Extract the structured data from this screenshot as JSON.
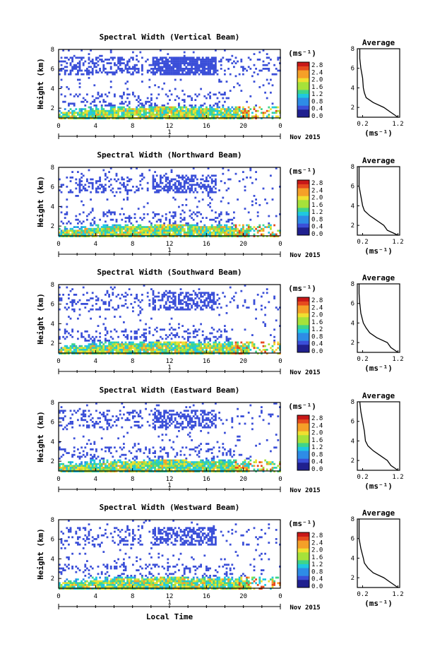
{
  "chart_data": [
    {
      "type": "heatmap",
      "title": "Spectral Width (Vertical Beam)",
      "ylabel": "Height (km)",
      "ylim": [
        1,
        8
      ],
      "yticks": [
        "2",
        "4",
        "6",
        "8"
      ],
      "xlim": [
        0,
        24
      ],
      "xticks": [
        "0",
        "4",
        "8",
        "12",
        "16",
        "20",
        "0"
      ],
      "day_marker": "1",
      "date_label": "Nov 2015",
      "colorbar": {
        "unit": "(ms⁻¹)",
        "range": [
          0,
          2.8
        ],
        "ticks": [
          "2.8",
          "2.4",
          "2.0",
          "1.6",
          "1.2",
          "0.8",
          "0.4",
          "0.0"
        ]
      },
      "average_profile": {
        "title": "Average",
        "xlabel": "(ms⁻¹)",
        "xticks": [
          "0.2",
          "1.2"
        ],
        "yticks": [
          "2",
          "4",
          "6",
          "8"
        ],
        "height_km": [
          1.0,
          1.5,
          2.0,
          2.5,
          3.0,
          3.5,
          4.0,
          5.0,
          6.0,
          7.0,
          8.0
        ],
        "width_ms": [
          1.2,
          1.0,
          0.8,
          0.5,
          0.3,
          0.25,
          0.22,
          0.2,
          0.15,
          0.12,
          0.12
        ]
      }
    },
    {
      "type": "heatmap",
      "title": "Spectral Width (Northward Beam)",
      "ylabel": "Height (km)",
      "ylim": [
        1,
        8
      ],
      "yticks": [
        "2",
        "4",
        "6",
        "8"
      ],
      "xlim": [
        0,
        24
      ],
      "xticks": [
        "0",
        "4",
        "8",
        "12",
        "16",
        "20",
        "0"
      ],
      "day_marker": "1",
      "date_label": "Nov 2015",
      "colorbar": {
        "unit": "(ms⁻¹)",
        "range": [
          0,
          2.8
        ],
        "ticks": [
          "2.8",
          "2.4",
          "2.0",
          "1.6",
          "1.2",
          "0.8",
          "0.4",
          "0.0"
        ]
      },
      "average_profile": {
        "title": "Average",
        "xlabel": "(ms⁻¹)",
        "xticks": [
          "0.2",
          "1.2"
        ],
        "yticks": [
          "2",
          "4",
          "6",
          "8"
        ],
        "height_km": [
          1.0,
          1.5,
          2.0,
          2.5,
          3.0,
          3.5,
          4.0,
          5.0,
          6.0,
          7.0,
          8.0
        ],
        "width_ms": [
          1.2,
          0.9,
          0.8,
          0.6,
          0.4,
          0.25,
          0.2,
          0.15,
          0.1,
          0.1,
          0.1
        ]
      }
    },
    {
      "type": "heatmap",
      "title": "Spectral Width (Southward Beam)",
      "ylabel": "Height (km)",
      "ylim": [
        1,
        8
      ],
      "yticks": [
        "2",
        "4",
        "6",
        "8"
      ],
      "xlim": [
        0,
        24
      ],
      "xticks": [
        "0",
        "4",
        "8",
        "12",
        "16",
        "20",
        "0"
      ],
      "day_marker": "1",
      "date_label": "Nov 2015",
      "colorbar": {
        "unit": "(ms⁻¹)",
        "range": [
          0,
          2.8
        ],
        "ticks": [
          "2.8",
          "2.4",
          "2.0",
          "1.6",
          "1.2",
          "0.8",
          "0.4",
          "0.0"
        ]
      },
      "average_profile": {
        "title": "Average",
        "xlabel": "(ms⁻¹)",
        "xticks": [
          "0.2",
          "1.2"
        ],
        "yticks": [
          "2",
          "4",
          "6",
          "8"
        ],
        "height_km": [
          1.0,
          1.5,
          2.0,
          2.5,
          3.0,
          3.5,
          4.0,
          5.0,
          6.0,
          7.0,
          8.0
        ],
        "width_ms": [
          1.2,
          1.0,
          0.9,
          0.6,
          0.4,
          0.3,
          0.22,
          0.15,
          0.12,
          0.1,
          0.1
        ]
      }
    },
    {
      "type": "heatmap",
      "title": "Spectral Width (Eastward Beam)",
      "ylabel": "Height (km)",
      "ylim": [
        1,
        8
      ],
      "yticks": [
        "2",
        "4",
        "6",
        "8"
      ],
      "xlim": [
        0,
        24
      ],
      "xticks": [
        "0",
        "4",
        "8",
        "12",
        "16",
        "20",
        "0"
      ],
      "day_marker": "1",
      "date_label": "Nov 2015",
      "colorbar": {
        "unit": "(ms⁻¹)",
        "range": [
          0,
          2.8
        ],
        "ticks": [
          "2.8",
          "2.4",
          "2.0",
          "1.6",
          "1.2",
          "0.8",
          "0.4",
          "0.0"
        ]
      },
      "average_profile": {
        "title": "Average",
        "xlabel": "(ms⁻¹)",
        "xticks": [
          "0.2",
          "1.2"
        ],
        "yticks": [
          "2",
          "4",
          "6",
          "8"
        ],
        "height_km": [
          1.0,
          1.5,
          2.0,
          2.5,
          3.0,
          3.5,
          4.0,
          5.0,
          6.0,
          7.0,
          8.0
        ],
        "width_ms": [
          1.2,
          1.0,
          0.9,
          0.7,
          0.5,
          0.35,
          0.28,
          0.25,
          0.2,
          0.15,
          0.12
        ]
      }
    },
    {
      "type": "heatmap",
      "title": "Spectral Width (Westward Beam)",
      "ylabel": "Height (km)",
      "ylim": [
        1,
        8
      ],
      "yticks": [
        "2",
        "4",
        "6",
        "8"
      ],
      "xlim": [
        0,
        24
      ],
      "xticks": [
        "0",
        "4",
        "8",
        "12",
        "16",
        "20",
        "0"
      ],
      "day_marker": "1",
      "date_label": "Nov 2015",
      "xlabel": "Local Time",
      "colorbar": {
        "unit": "(ms⁻¹)",
        "range": [
          0,
          2.8
        ],
        "ticks": [
          "2.8",
          "2.4",
          "2.0",
          "1.6",
          "1.2",
          "0.8",
          "0.4",
          "0.0"
        ]
      },
      "average_profile": {
        "title": "Average",
        "xlabel": "(ms⁻¹)",
        "xticks": [
          "0.2",
          "1.2"
        ],
        "yticks": [
          "2",
          "4",
          "6",
          "8"
        ],
        "height_km": [
          1.0,
          1.5,
          2.0,
          2.5,
          3.0,
          3.5,
          4.0,
          5.0,
          6.0,
          7.0,
          8.0
        ],
        "width_ms": [
          1.2,
          1.0,
          0.8,
          0.5,
          0.35,
          0.25,
          0.22,
          0.15,
          0.1,
          0.1,
          0.1
        ]
      }
    }
  ],
  "colors": {
    "scale": [
      "#20208f",
      "#3b4fd8",
      "#2e8ce6",
      "#1fc8e0",
      "#3fd48a",
      "#a6e23a",
      "#f0e030",
      "#f5a028",
      "#e64a1e",
      "#c81818"
    ]
  }
}
